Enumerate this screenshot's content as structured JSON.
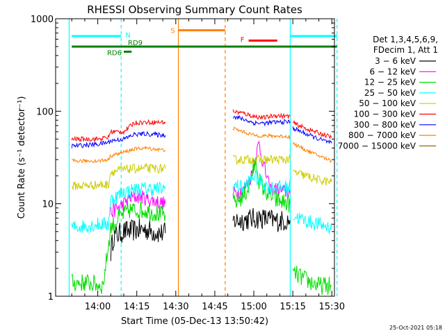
{
  "chart_data": {
    "type": "line",
    "title": "RHESSI Observing Summary Count Rates",
    "xlabel": "Start Time (05-Dec-13 13:50:42)",
    "ylabel": "Count Rate (s⁻¹ detector⁻¹)",
    "yscale": "log",
    "ylim": [
      1,
      1000
    ],
    "xlim_minutes_after_1350": [
      0,
      100
    ],
    "x_ticks": [
      {
        "label": "14:00",
        "min": 10
      },
      {
        "label": "14:15",
        "min": 25
      },
      {
        "label": "14:30",
        "min": 40
      },
      {
        "label": "14:45",
        "min": 55
      },
      {
        "label": "15:00",
        "min": 70
      },
      {
        "label": "15:15",
        "min": 85
      },
      {
        "label": "15:30",
        "min": 100
      }
    ],
    "y_ticks": [
      {
        "label": "1",
        "value": 1
      },
      {
        "label": "10",
        "value": 10
      },
      {
        "label": "100",
        "value": 100
      },
      {
        "label": "1000",
        "value": 1000
      }
    ],
    "legend": {
      "header": [
        "Det 1,3,4,5,6,9,",
        "FDecim 1, Att 1"
      ],
      "placement": "right"
    },
    "series": [
      {
        "name": "3 − 6 keV",
        "color": "#000000",
        "segments": [
          [
            [
              15,
              3.0
            ],
            [
              16,
              4.4
            ],
            [
              20,
              5.0
            ],
            [
              28,
              5.3
            ],
            [
              34,
              4.8
            ],
            [
              36,
              4.8
            ]
          ],
          [
            [
              62,
              6.5
            ],
            [
              68,
              6.8
            ],
            [
              72,
              7.0
            ],
            [
              76,
              6.8
            ],
            [
              78,
              6.5
            ],
            [
              84,
              6.6
            ]
          ]
        ]
      },
      {
        "name": "6 − 12 keV",
        "color": "#ff00ff",
        "segments": [
          [
            [
              15,
              8.0
            ],
            [
              16,
              8.4
            ],
            [
              20,
              10.0
            ],
            [
              22,
              11.5
            ],
            [
              26,
              12.0
            ],
            [
              30,
              11.0
            ],
            [
              36,
              10.0
            ]
          ],
          [
            [
              62,
              13.0
            ],
            [
              66,
              14.0
            ],
            [
              69,
              20
            ],
            [
              71,
              35
            ],
            [
              72,
              45
            ],
            [
              73,
              32
            ],
            [
              74,
              25
            ],
            [
              76,
              15
            ],
            [
              78,
              14.5
            ],
            [
              84,
              13.0
            ]
          ]
        ]
      },
      {
        "name": "12 − 25 keV",
        "color": "#00dd00",
        "segments": [
          [
            [
              0,
              1.4
            ],
            [
              6,
              1.4
            ],
            [
              12,
              1.3
            ],
            [
              15,
              5.5
            ],
            [
              18,
              7.0
            ],
            [
              22,
              8.5
            ],
            [
              28,
              8.5
            ],
            [
              36,
              7.5
            ]
          ],
          [
            [
              62,
              10.0
            ],
            [
              66,
              12.0
            ],
            [
              68,
              15
            ],
            [
              70,
              25
            ],
            [
              71,
              28
            ],
            [
              72,
              18
            ],
            [
              74,
              14
            ],
            [
              78,
              11
            ],
            [
              84,
              10
            ]
          ],
          [
            [
              85,
              1.8
            ],
            [
              90,
              1.5
            ],
            [
              95,
              1.3
            ],
            [
              100,
              1.3
            ]
          ]
        ]
      },
      {
        "name": "25 − 50 keV",
        "color": "#00ffff",
        "segments": [
          [
            [
              0,
              5.5
            ],
            [
              10,
              6.0
            ],
            [
              14,
              6.0
            ],
            [
              15,
              11.0
            ],
            [
              20,
              13.5
            ],
            [
              26,
              14.5
            ],
            [
              36,
              14.5
            ]
          ],
          [
            [
              62,
              16.0
            ],
            [
              66,
              15.0
            ],
            [
              68,
              17
            ],
            [
              70,
              20
            ],
            [
              72,
              18
            ],
            [
              76,
              15
            ],
            [
              84,
              15.0
            ]
          ],
          [
            [
              85,
              7.5
            ],
            [
              90,
              6.5
            ],
            [
              95,
              6.0
            ],
            [
              100,
              5.5
            ]
          ]
        ]
      },
      {
        "name": "50 − 100 keV",
        "color": "#cccc00",
        "segments": [
          [
            [
              0,
              15.5
            ],
            [
              10,
              16.0
            ],
            [
              14,
              16.0
            ],
            [
              15,
              22.0
            ],
            [
              18,
              23.0
            ],
            [
              24,
              24.0
            ],
            [
              36,
              24.0
            ]
          ],
          [
            [
              62,
              30.0
            ],
            [
              70,
              30.0
            ],
            [
              78,
              30.0
            ],
            [
              84,
              30.0
            ]
          ],
          [
            [
              85,
              22
            ],
            [
              90,
              20
            ],
            [
              95,
              18
            ],
            [
              100,
              17
            ]
          ]
        ]
      },
      {
        "name": "100 − 300 keV",
        "color": "#ff0000",
        "segments": [
          [
            [
              0,
              50
            ],
            [
              10,
              50
            ],
            [
              14,
              52
            ],
            [
              15,
              60
            ],
            [
              20,
              60
            ],
            [
              24,
              75
            ],
            [
              28,
              76
            ],
            [
              36,
              76
            ]
          ],
          [
            [
              62,
              100
            ],
            [
              66,
              95
            ],
            [
              70,
              88
            ],
            [
              74,
              85
            ],
            [
              78,
              90
            ],
            [
              84,
              88
            ]
          ],
          [
            [
              85,
              75
            ],
            [
              90,
              65
            ],
            [
              95,
              58
            ],
            [
              100,
              52
            ]
          ]
        ]
      },
      {
        "name": "300 − 800 keV",
        "color": "#0000ff",
        "segments": [
          [
            [
              0,
              42
            ],
            [
              10,
              44
            ],
            [
              14,
              46
            ],
            [
              15,
              48
            ],
            [
              20,
              50
            ],
            [
              24,
              56
            ],
            [
              28,
              57
            ],
            [
              36,
              55
            ]
          ],
          [
            [
              62,
              88
            ],
            [
              66,
              82
            ],
            [
              70,
              75
            ],
            [
              74,
              74
            ],
            [
              78,
              76
            ],
            [
              84,
              77
            ]
          ],
          [
            [
              85,
              66
            ],
            [
              90,
              57
            ],
            [
              95,
              50
            ],
            [
              100,
              45
            ]
          ]
        ]
      },
      {
        "name": "800 − 7000 keV",
        "color": "#ff8000",
        "segments": [
          [
            [
              0,
              29
            ],
            [
              10,
              29
            ],
            [
              14,
              30
            ],
            [
              15,
              33
            ],
            [
              20,
              36
            ],
            [
              24,
              39
            ],
            [
              28,
              40
            ],
            [
              36,
              38
            ]
          ],
          [
            [
              62,
              65
            ],
            [
              66,
              60
            ],
            [
              70,
              55
            ],
            [
              74,
              54
            ],
            [
              78,
              54
            ],
            [
              84,
              53
            ]
          ],
          [
            [
              85,
              45
            ],
            [
              90,
              38
            ],
            [
              95,
              33
            ],
            [
              100,
              29
            ]
          ]
        ]
      },
      {
        "name": "7000 − 15000 keV",
        "color": "#996600",
        "segments": []
      }
    ],
    "annotations": {
      "bars": [
        {
          "label": "N",
          "color": "#00ffff",
          "from_min": 0,
          "to_min": 19,
          "value": 650
        },
        {
          "label": "",
          "color": "#00ffff",
          "from_min": 84,
          "to_min": 102,
          "value": 650
        },
        {
          "label": "S",
          "color": "#ff8000",
          "from_min": 41,
          "to_min": 59,
          "value": 750
        },
        {
          "label": "F",
          "color": "#ff0000",
          "from_min": 68,
          "to_min": 79,
          "value": 580
        },
        {
          "label": "RD6",
          "color": "#008000",
          "from_min": 20,
          "to_min": 23,
          "value": 440
        },
        {
          "label": "RD9",
          "color": "#008000",
          "from_min": 0,
          "to_min": 102,
          "value": 500
        }
      ],
      "vlines": [
        {
          "color": "#00ffff",
          "min": -1,
          "style": "solid"
        },
        {
          "color": "#00ffff",
          "min": 19,
          "style": "dashed"
        },
        {
          "color": "#ff8000",
          "min": 41,
          "style": "solid"
        },
        {
          "color": "#ff8000",
          "min": 59,
          "style": "dashed"
        },
        {
          "color": "#00ffff",
          "min": 84,
          "style": "solid"
        },
        {
          "color": "#00ffff",
          "min": 102,
          "style": "dashed"
        }
      ]
    },
    "footer_timestamp": "25-Oct-2021 05:18"
  }
}
